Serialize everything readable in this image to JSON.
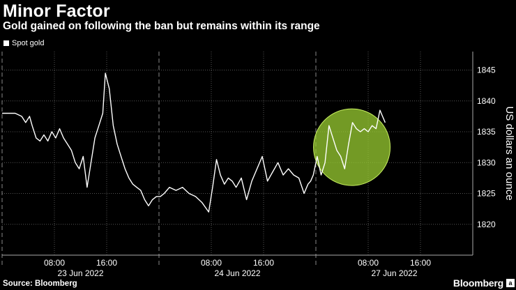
{
  "header": {
    "title": "Minor Factor",
    "subtitle": "Gold gained on following the ban but remains within its range"
  },
  "legend": {
    "label": "Spot gold"
  },
  "footer": {
    "source": "Source: Bloomberg",
    "brand": "Bloomberg",
    "brand_mark": "a"
  },
  "colors": {
    "background": "#000000",
    "line": "#ffffff",
    "highlight": "#9acd32"
  },
  "chart_data": {
    "type": "line",
    "title": "Minor Factor",
    "subtitle": "Gold gained on following the ban but remains within its range",
    "ylabel": "US dollars an ounce",
    "ylim": [
      1815,
      1848
    ],
    "yticks": [
      1820,
      1825,
      1830,
      1835,
      1840,
      1845
    ],
    "xlim": [
      0,
      72
    ],
    "xticks": [
      {
        "pos": 8,
        "label": "08:00"
      },
      {
        "pos": 16,
        "label": "16:00"
      },
      {
        "pos": 32,
        "label": "08:00"
      },
      {
        "pos": 40,
        "label": "16:00"
      },
      {
        "pos": 56,
        "label": "08:00"
      },
      {
        "pos": 64,
        "label": "16:00"
      }
    ],
    "date_labels": [
      {
        "pos": 12,
        "label": "23 Jun 2022"
      },
      {
        "pos": 36,
        "label": "24 Jun 2022"
      },
      {
        "pos": 60,
        "label": "27 Jun 2022"
      }
    ],
    "day_dividers": [
      0,
      24,
      48
    ],
    "grid": true,
    "legend_position": "top-left",
    "highlight": {
      "x": 53.5,
      "y": 1832.5,
      "note": "circle around post-ban gain"
    },
    "series": [
      {
        "name": "Spot gold",
        "x": [
          0,
          2,
          3,
          3.6,
          4.2,
          4.6,
          5.2,
          5.8,
          6.4,
          7,
          7.6,
          8.2,
          8.8,
          9.4,
          10,
          10.6,
          11.2,
          11.8,
          12.4,
          13,
          13.6,
          14.2,
          14.8,
          15.4,
          15.8,
          16.4,
          17,
          17.6,
          18.2,
          18.8,
          19.4,
          20,
          20.6,
          21.2,
          21.8,
          22.4,
          23,
          23.6,
          24.2,
          24.8,
          25.6,
          26.6,
          27.6,
          28.6,
          29.6,
          30.6,
          31.6,
          32.2,
          32.8,
          33.4,
          34,
          34.6,
          35.2,
          35.8,
          36.6,
          37.4,
          38.2,
          39,
          39.8,
          40.6,
          41.4,
          42.2,
          43,
          43.8,
          44.6,
          45.4,
          46.2,
          46.8,
          47.2,
          47.6,
          48.2,
          48.8,
          49.4,
          50,
          50.6,
          51.2,
          51.8,
          52.4,
          53,
          53.6,
          54.2,
          54.8,
          55.4,
          56,
          56.6,
          57.2,
          57.8,
          58.2,
          58.6
        ],
        "values": [
          1838,
          1838,
          1837.5,
          1836.5,
          1837.5,
          1836,
          1834,
          1833.5,
          1834.5,
          1833.5,
          1835,
          1834,
          1835.5,
          1834,
          1833,
          1832,
          1830,
          1829,
          1831,
          1826,
          1830,
          1834,
          1836,
          1838,
          1844.5,
          1842,
          1836,
          1833,
          1831,
          1829,
          1827.5,
          1826.5,
          1826,
          1825.5,
          1824,
          1823,
          1824,
          1824.5,
          1824.5,
          1825,
          1826,
          1825.5,
          1826,
          1825,
          1824.5,
          1823.5,
          1822,
          1826,
          1830.5,
          1828,
          1826.5,
          1827.5,
          1827,
          1826,
          1827.5,
          1824,
          1827,
          1829,
          1831,
          1827,
          1828.5,
          1830,
          1828,
          1829,
          1828,
          1827.5,
          1825,
          1826.5,
          1827,
          1828,
          1831,
          1828,
          1830,
          1836,
          1834,
          1832,
          1831,
          1829,
          1833,
          1836.5,
          1835.5,
          1835,
          1835.5,
          1835,
          1836,
          1835.5,
          1838.5,
          1837.5,
          1836.5
        ]
      }
    ]
  }
}
